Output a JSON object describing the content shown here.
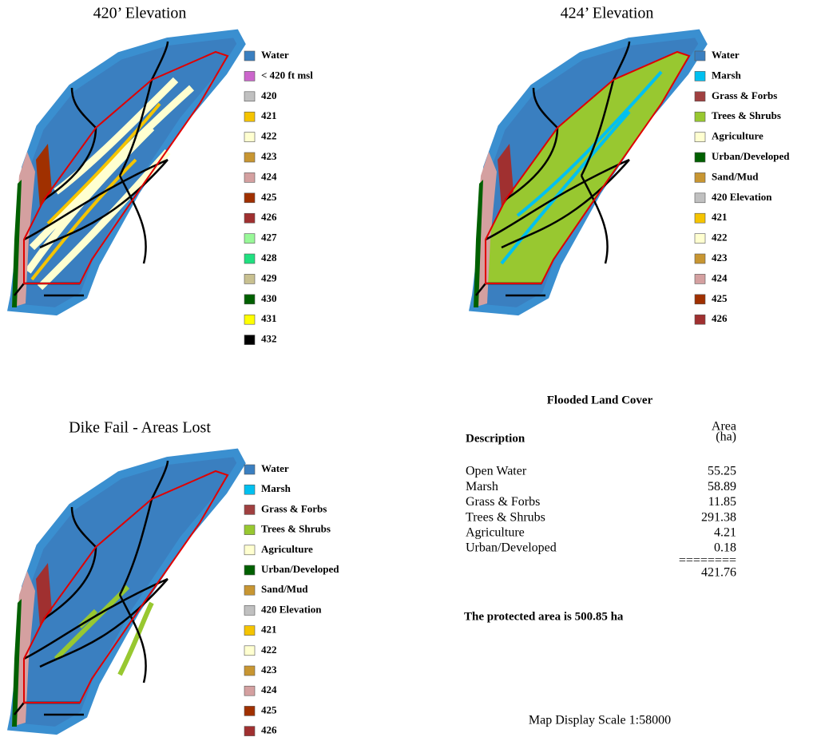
{
  "panels": [
    {
      "title": "420’ Elevation",
      "legend": [
        {
          "label": "Water",
          "color": "#3a7fc0"
        },
        {
          "label": "< 420 ft msl",
          "color": "#cc66cc"
        },
        {
          "label": "420",
          "color": "#c0c0c0"
        },
        {
          "label": "421",
          "color": "#f5c400"
        },
        {
          "label": "422",
          "color": "#ffffd0"
        },
        {
          "label": "423",
          "color": "#c89632"
        },
        {
          "label": "424",
          "color": "#d4a0a0"
        },
        {
          "label": "425",
          "color": "#a03000"
        },
        {
          "label": "426",
          "color": "#a03030"
        },
        {
          "label": "427",
          "color": "#98f898"
        },
        {
          "label": "428",
          "color": "#20e080"
        },
        {
          "label": "429",
          "color": "#c8c090"
        },
        {
          "label": "430",
          "color": "#006000"
        },
        {
          "label": "431",
          "color": "#ffff00"
        },
        {
          "label": "432",
          "color": "#000000"
        }
      ]
    },
    {
      "title": "424’ Elevation",
      "legend": [
        {
          "label": "Water",
          "color": "#3a7fc0"
        },
        {
          "label": "Marsh",
          "color": "#00c0f0"
        },
        {
          "label": "Grass & Forbs",
          "color": "#a04040"
        },
        {
          "label": "Trees & Shrubs",
          "color": "#98c830"
        },
        {
          "label": "Agriculture",
          "color": "#ffffd0"
        },
        {
          "label": "Urban/Developed",
          "color": "#006000"
        },
        {
          "label": "Sand/Mud",
          "color": "#c89632"
        },
        {
          "label": "420 Elevation",
          "color": "#c0c0c0"
        },
        {
          "label": "421",
          "color": "#f5c400"
        },
        {
          "label": "422",
          "color": "#ffffd0"
        },
        {
          "label": "423",
          "color": "#c89632"
        },
        {
          "label": "424",
          "color": "#d4a0a0"
        },
        {
          "label": "425",
          "color": "#a03000"
        },
        {
          "label": "426",
          "color": "#a03030"
        }
      ]
    },
    {
      "title": "Dike Fail - Areas Lost",
      "legend": [
        {
          "label": "Water",
          "color": "#3a7fc0"
        },
        {
          "label": "Marsh",
          "color": "#00c0f0"
        },
        {
          "label": "Grass & Forbs",
          "color": "#a04040"
        },
        {
          "label": "Trees & Shrubs",
          "color": "#98c830"
        },
        {
          "label": "Agriculture",
          "color": "#ffffd0"
        },
        {
          "label": "Urban/Developed",
          "color": "#006000"
        },
        {
          "label": "Sand/Mud",
          "color": "#c89632"
        },
        {
          "label": "420 Elevation",
          "color": "#c0c0c0"
        },
        {
          "label": "421",
          "color": "#f5c400"
        },
        {
          "label": "422",
          "color": "#ffffd0"
        },
        {
          "label": "423",
          "color": "#c89632"
        },
        {
          "label": "424",
          "color": "#d4a0a0"
        },
        {
          "label": "425",
          "color": "#a03000"
        },
        {
          "label": "426",
          "color": "#a03030"
        }
      ]
    }
  ],
  "table": {
    "title": "Flooded Land Cover",
    "header": {
      "description": "Description",
      "area": "Area",
      "unit": "(ha)"
    },
    "rows": [
      [
        "Open Water",
        "55.25"
      ],
      [
        "Marsh",
        "58.89"
      ],
      [
        "Grass & Forbs",
        "11.85"
      ],
      [
        "Trees & Shrubs",
        "291.38"
      ],
      [
        "Agriculture",
        "4.21"
      ],
      [
        "Urban/Developed",
        "0.18"
      ]
    ],
    "separator": "========",
    "total": "421.76"
  },
  "protected_note": "The protected area is 500.85 ha",
  "scale_note": "Map Display Scale 1:58000"
}
